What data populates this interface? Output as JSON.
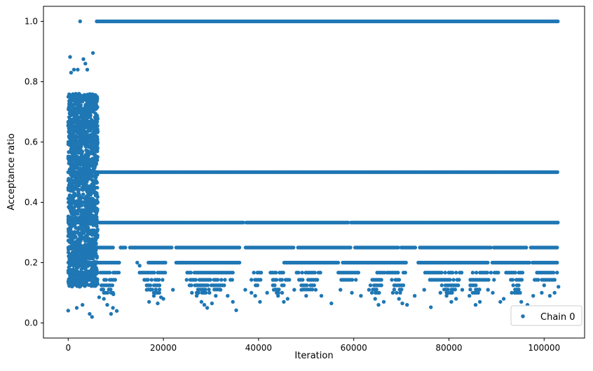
{
  "chart_data": {
    "type": "scatter",
    "title": "",
    "xlabel": "Iteration",
    "ylabel": "Acceptance ratio",
    "xlim": [
      -5200,
      108500
    ],
    "ylim": [
      -0.05,
      1.05
    ],
    "x_ticks": [
      0,
      20000,
      40000,
      60000,
      80000,
      100000
    ],
    "x_tick_labels": [
      "0",
      "20000",
      "40000",
      "60000",
      "80000",
      "100000"
    ],
    "y_ticks": [
      0.0,
      0.2,
      0.4,
      0.6,
      0.8,
      1.0
    ],
    "y_tick_labels": [
      "0.0",
      "0.2",
      "0.4",
      "0.6",
      "0.8",
      "1.0"
    ],
    "grid": false,
    "legend": {
      "position": "lower-right",
      "entries": [
        "Chain 0"
      ]
    },
    "series": [
      {
        "name": "Chain 0",
        "color": "#1f77b4",
        "marker": "circle",
        "points": [
          [
            0,
            0.041
          ],
          [
            400,
            0.882
          ],
          [
            600,
            0.83
          ],
          [
            1200,
            0.84
          ],
          [
            2000,
            0.84
          ],
          [
            2500,
            1.0
          ],
          [
            3200,
            0.875
          ],
          [
            3600,
            0.86
          ],
          [
            4000,
            0.84
          ],
          [
            5200,
            0.895
          ],
          [
            5000,
            0.02
          ],
          [
            1800,
            0.05
          ],
          [
            3000,
            0.06
          ],
          [
            4500,
            0.03
          ],
          [
            6500,
            0.085
          ],
          [
            7500,
            0.08
          ],
          [
            8200,
            0.06
          ],
          [
            9000,
            0.03
          ],
          [
            9400,
            0.05
          ],
          [
            9500,
            0.095
          ],
          [
            10200,
            0.04
          ],
          [
            11000,
            0.25
          ],
          [
            14000,
            0.25
          ],
          [
            14500,
            0.2
          ],
          [
            15000,
            0.19
          ],
          [
            16500,
            0.11
          ],
          [
            17300,
            0.11
          ],
          [
            17000,
            0.07
          ],
          [
            18000,
            0.09
          ],
          [
            18800,
            0.065
          ],
          [
            19500,
            0.085
          ],
          [
            20000,
            0.08
          ],
          [
            22000,
            0.11
          ],
          [
            24000,
            0.2
          ],
          [
            26000,
            0.1
          ],
          [
            27000,
            0.09
          ],
          [
            28000,
            0.07
          ],
          [
            28600,
            0.06
          ],
          [
            29200,
            0.05
          ],
          [
            30200,
            0.065
          ],
          [
            31000,
            0.09
          ],
          [
            32000,
            0.11
          ],
          [
            33500,
            0.09
          ],
          [
            34600,
            0.07
          ],
          [
            35300,
            0.042
          ],
          [
            37200,
            0.11
          ],
          [
            38500,
            0.1
          ],
          [
            39300,
            0.09
          ],
          [
            40300,
            0.07
          ],
          [
            41800,
            0.1
          ],
          [
            43200,
            0.11
          ],
          [
            44100,
            0.09
          ],
          [
            45300,
            0.07
          ],
          [
            46100,
            0.08
          ],
          [
            47500,
            0.11
          ],
          [
            49000,
            0.11
          ],
          [
            50000,
            0.09
          ],
          [
            52000,
            0.11
          ],
          [
            53200,
            0.09
          ],
          [
            55300,
            0.065
          ],
          [
            57200,
            0.11
          ],
          [
            59600,
            0.1
          ],
          [
            61500,
            0.09
          ],
          [
            63200,
            0.11
          ],
          [
            64500,
            0.08
          ],
          [
            65200,
            0.06
          ],
          [
            66300,
            0.07
          ],
          [
            68200,
            0.1
          ],
          [
            69500,
            0.08
          ],
          [
            70200,
            0.065
          ],
          [
            71200,
            0.06
          ],
          [
            72800,
            0.09
          ],
          [
            74800,
            0.11
          ],
          [
            76200,
            0.052
          ],
          [
            78200,
            0.1
          ],
          [
            79500,
            0.09
          ],
          [
            80500,
            0.07
          ],
          [
            81500,
            0.08
          ],
          [
            82800,
            0.11
          ],
          [
            84300,
            0.09
          ],
          [
            85600,
            0.06
          ],
          [
            86500,
            0.07
          ],
          [
            88200,
            0.11
          ],
          [
            89200,
            0.1
          ],
          [
            90800,
            0.07
          ],
          [
            91500,
            0.08
          ],
          [
            93200,
            0.1
          ],
          [
            95200,
            0.07
          ],
          [
            95800,
            0.048
          ],
          [
            96500,
            0.06
          ],
          [
            97700,
            0.09
          ],
          [
            99500,
            0.1
          ],
          [
            101200,
            0.09
          ],
          [
            102200,
            0.1
          ],
          [
            103000,
            0.12
          ]
        ]
      }
    ]
  }
}
